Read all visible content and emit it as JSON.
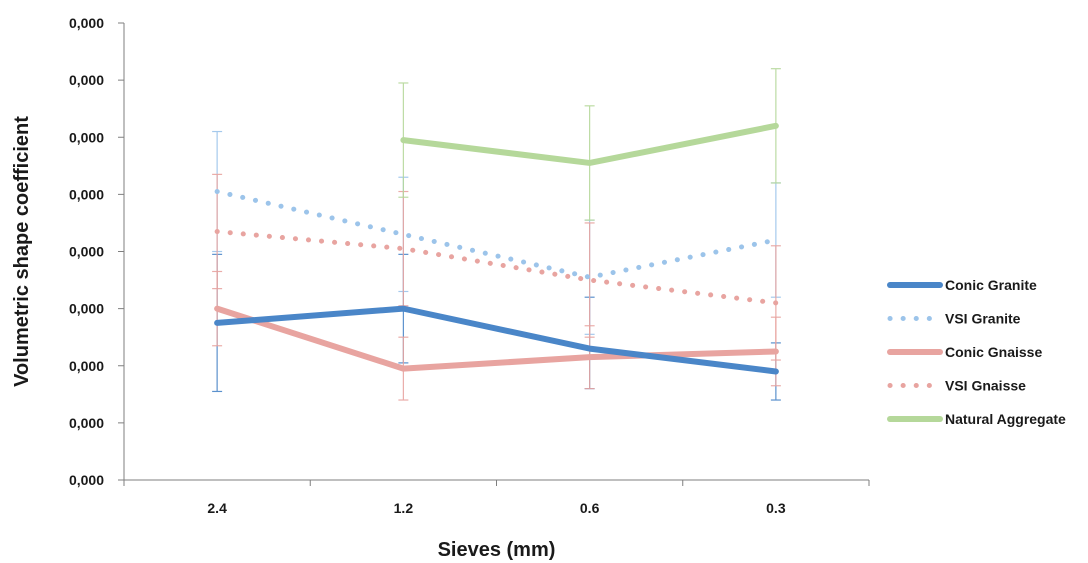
{
  "chart_data": {
    "type": "line",
    "xlabel": "Sieves (mm)",
    "ylabel": "Volumetric shape coefficient",
    "categories": [
      "2.4",
      "1.2",
      "0.6",
      "0.3"
    ],
    "y_tick_labels": [
      "0,000",
      "0,000",
      "0,000",
      "0,000",
      "0,000",
      "0,000",
      "0,000",
      "0,000",
      "0,000"
    ],
    "ylim": [
      0,
      8
    ],
    "grid": false,
    "legend_position": "right",
    "series": [
      {
        "name": "Conic Granite",
        "style": "solid",
        "color": "#4a86c8",
        "values": [
          2.75,
          3.0,
          2.3,
          1.9
        ],
        "error": [
          [
            1.2,
            1.2
          ],
          [
            0.95,
            0.95
          ],
          [
            0.7,
            0.9
          ],
          [
            0.5,
            0.5
          ]
        ]
      },
      {
        "name": "VSI Granite",
        "style": "dotted",
        "color": "#9cc4ea",
        "values": [
          5.05,
          4.3,
          3.55,
          4.2
        ],
        "error": [
          [
            1.05,
            1.05
          ],
          [
            1.0,
            1.0
          ],
          [
            1.0,
            1.0
          ],
          [
            1.0,
            1.0
          ]
        ]
      },
      {
        "name": "Conic Gnaisse",
        "style": "solid",
        "color": "#e8a4a0",
        "values": [
          3.0,
          1.95,
          2.15,
          2.25
        ],
        "error": [
          [
            0.65,
            0.65
          ],
          [
            0.55,
            0.55
          ],
          [
            0.55,
            0.55
          ],
          [
            0.6,
            0.6
          ]
        ]
      },
      {
        "name": "VSI Gnaisse",
        "style": "dotted",
        "color": "#e8a4a0",
        "values": [
          4.35,
          4.05,
          3.5,
          3.1
        ],
        "error": [
          [
            1.0,
            1.0
          ],
          [
            1.0,
            1.0
          ],
          [
            1.0,
            1.0
          ],
          [
            1.0,
            1.0
          ]
        ]
      },
      {
        "name": "Natural Aggregate",
        "style": "solid",
        "color": "#b5d89a",
        "values": [
          null,
          5.95,
          5.55,
          6.2
        ],
        "error": [
          null,
          [
            1.0,
            1.0
          ],
          [
            1.0,
            1.0
          ],
          [
            1.0,
            1.0
          ]
        ]
      }
    ]
  }
}
